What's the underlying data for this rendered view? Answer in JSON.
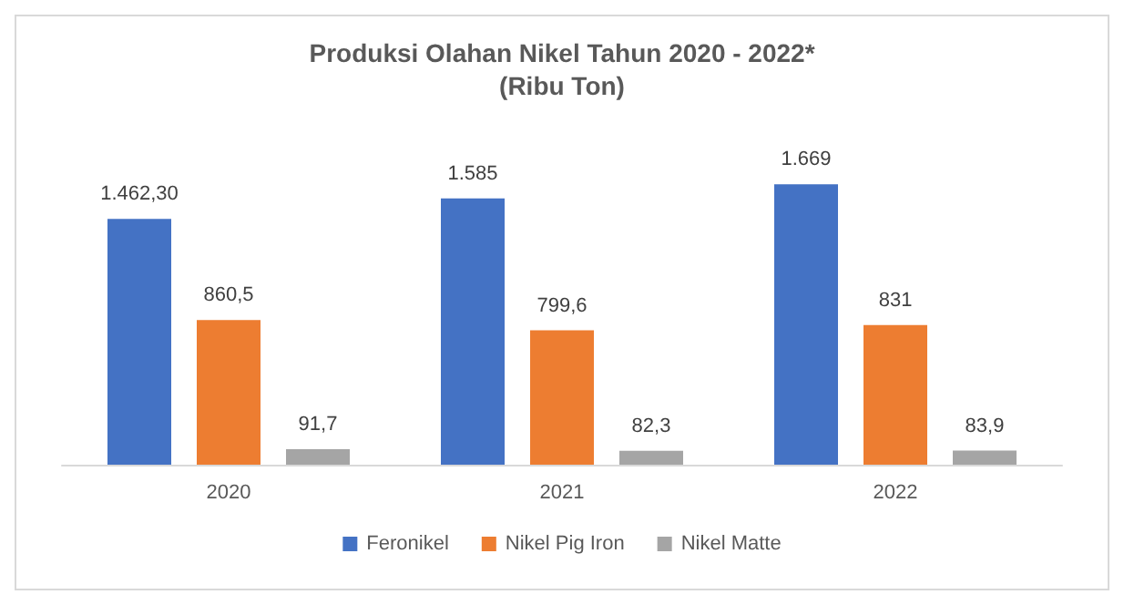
{
  "chart_data": {
    "type": "bar",
    "title": "Produksi Olahan Nikel Tahun 2020 - 2022*",
    "subtitle": "(Ribu Ton)",
    "categories": [
      "2020",
      "2021",
      "2022"
    ],
    "series": [
      {
        "name": "Feronikel",
        "color": "#4472c4",
        "values": [
          1462.3,
          1585,
          1669
        ],
        "value_labels": [
          "1.462,30",
          "1.585",
          "1.669"
        ]
      },
      {
        "name": "Nikel Pig Iron",
        "color": "#ed7d31",
        "values": [
          860.5,
          799.6,
          831
        ],
        "value_labels": [
          "860,5",
          "799,6",
          "831"
        ]
      },
      {
        "name": "Nikel Matte",
        "color": "#a5a5a5",
        "values": [
          91.7,
          82.3,
          83.9
        ],
        "value_labels": [
          "91,7",
          "82,3",
          "83,9"
        ]
      }
    ],
    "tick_labels": "x",
    "legend": "bottom",
    "grid": false
  }
}
